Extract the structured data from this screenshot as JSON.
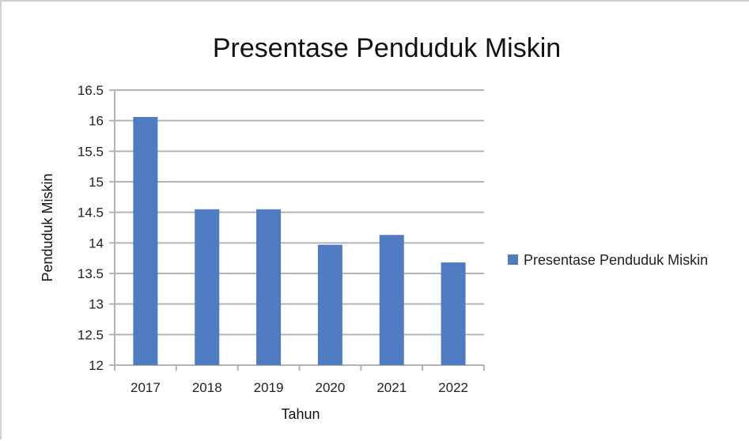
{
  "chart_data": {
    "type": "bar",
    "title": "Presentase Penduduk Miskin",
    "xlabel": "Tahun",
    "ylabel": "Penduduk Miskin",
    "categories": [
      "2017",
      "2018",
      "2019",
      "2020",
      "2021",
      "2022"
    ],
    "series": [
      {
        "name": "Presentase Penduduk Miskin",
        "values": [
          16.06,
          14.55,
          14.55,
          13.97,
          14.13,
          13.68
        ]
      }
    ],
    "ylim": [
      12,
      16.5
    ],
    "yticks": [
      12,
      12.5,
      13,
      13.5,
      14,
      14.5,
      15,
      15.5,
      16,
      16.5
    ],
    "ytick_labels": [
      "12",
      "12.5",
      "13",
      "13.5",
      "14",
      "14.5",
      "15",
      "15.5",
      "16",
      "16.5"
    ],
    "grid": true,
    "legend": "right",
    "colors": {
      "bar": "#4f7cc0",
      "grid": "#b3b3b3"
    }
  }
}
